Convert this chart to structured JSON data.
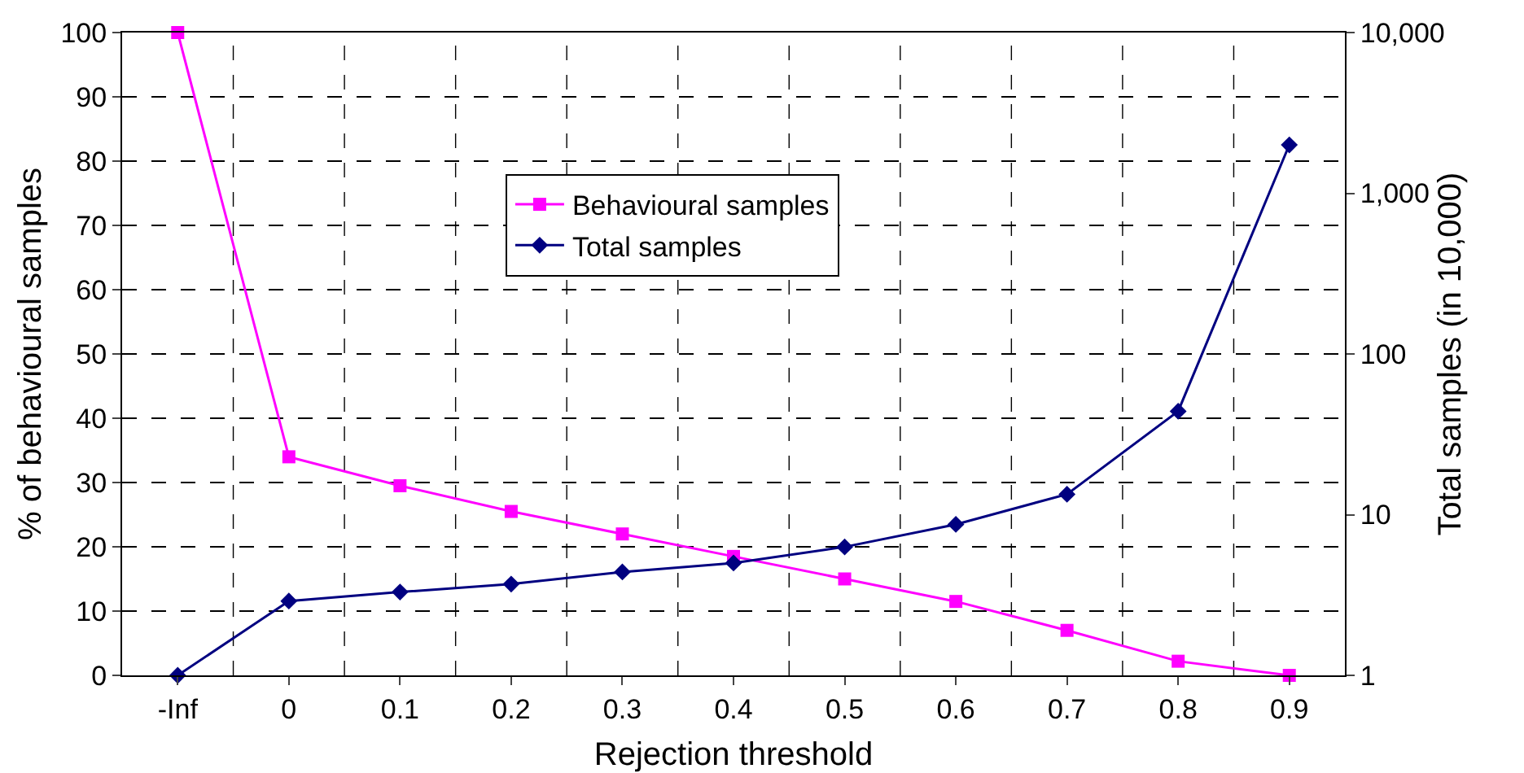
{
  "chart_data": {
    "type": "line",
    "xlabel": "Rejection threshold",
    "ylabel": "% of behavioural samples",
    "y2label": "Total samples (in 10,000)",
    "categories": [
      "-Inf",
      "0",
      "0.1",
      "0.2",
      "0.3",
      "0.4",
      "0.5",
      "0.6",
      "0.7",
      "0.8",
      "0.9"
    ],
    "series": [
      {
        "name": "Behavioural samples",
        "color": "#ff00ff",
        "marker": "square",
        "values": [
          100,
          34,
          29.5,
          25.5,
          22,
          18.5,
          15,
          11.5,
          7,
          2.2,
          0
        ]
      },
      {
        "name": "Total samples",
        "color": "#000080",
        "marker": "diamond",
        "axis": "y2",
        "values": [
          1,
          2.9,
          3.3,
          3.7,
          4.4,
          5,
          6.3,
          8.7,
          13.4,
          44,
          2000
        ]
      }
    ],
    "ylim": [
      0,
      100
    ],
    "yticks": [
      0,
      10,
      20,
      30,
      40,
      50,
      60,
      70,
      80,
      90,
      100
    ],
    "y2lim": [
      1,
      10000
    ],
    "y2ticks": [
      1,
      10,
      100,
      {
        "value": 1000,
        "label": "1,000"
      },
      {
        "value": 10000,
        "label": "10,000"
      }
    ],
    "log": "y2",
    "grid": true,
    "legend": "center",
    "line_style": "solid"
  }
}
